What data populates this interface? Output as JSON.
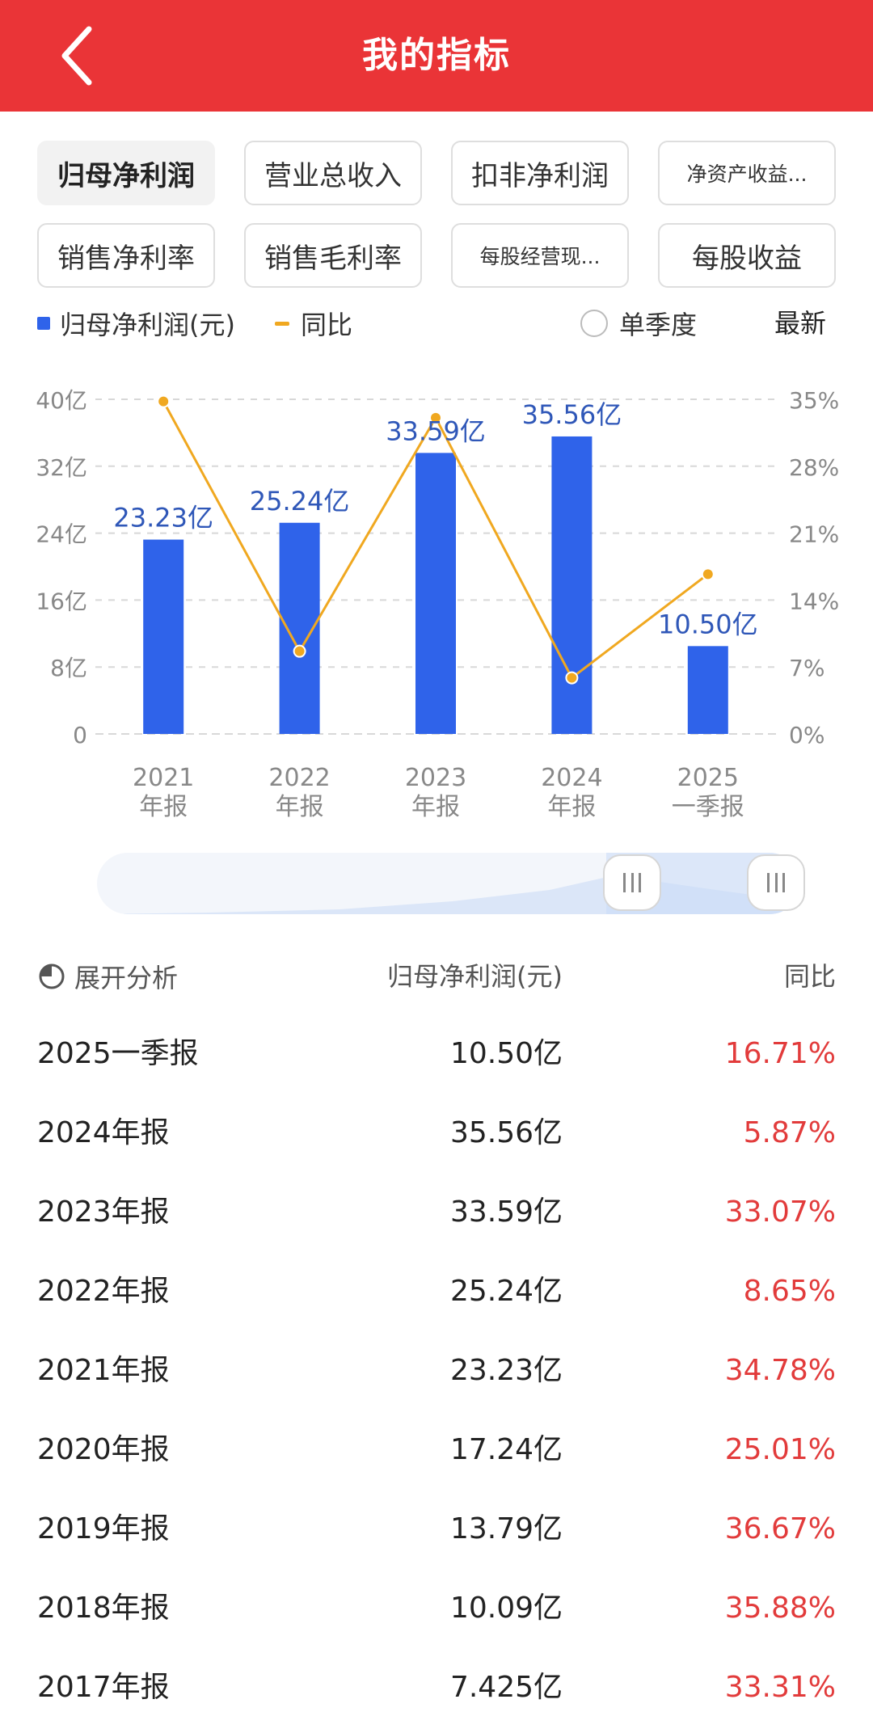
{
  "header": {
    "title": "我的指标",
    "back_icon": "chevron-left-icon"
  },
  "tabs": [
    {
      "label": "归母净利润",
      "active": true
    },
    {
      "label": "营业总收入",
      "active": false
    },
    {
      "label": "扣非净利润",
      "active": false
    },
    {
      "label": "净资产收益...",
      "active": false
    },
    {
      "label": "销售净利率",
      "active": false
    },
    {
      "label": "销售毛利率",
      "active": false
    },
    {
      "label": "每股经营现...",
      "active": false
    },
    {
      "label": "每股收益",
      "active": false
    }
  ],
  "legend": {
    "bar_label": "归母净利润(元)",
    "line_label": "同比",
    "single_quarter_label": "单季度",
    "latest_label": "最新"
  },
  "colors": {
    "accent": "#ea3437",
    "bar": "#2f63ea",
    "line": "#f0a820",
    "positive": "#e23b3b"
  },
  "chart_data": {
    "type": "bar",
    "categories": [
      {
        "year": "2021",
        "period": "年报"
      },
      {
        "year": "2022",
        "period": "年报"
      },
      {
        "year": "2023",
        "period": "年报"
      },
      {
        "year": "2024",
        "period": "年报"
      },
      {
        "year": "2025",
        "period": "一季报"
      }
    ],
    "series": [
      {
        "name": "归母净利润(元)",
        "values": [
          23.23,
          25.24,
          33.59,
          35.56,
          10.5
        ],
        "labels": [
          "23.23亿",
          "25.24亿",
          "33.59亿",
          "35.56亿",
          "10.50亿"
        ],
        "axis": "left"
      },
      {
        "name": "同比",
        "values": [
          34.78,
          8.65,
          33.07,
          5.87,
          16.71
        ],
        "axis": "right",
        "type": "line"
      }
    ],
    "y_left": {
      "ticks": [
        "0",
        "8亿",
        "16亿",
        "24亿",
        "32亿",
        "40亿"
      ],
      "range": [
        0,
        40
      ]
    },
    "y_right": {
      "ticks": [
        "0%",
        "7%",
        "14%",
        "21%",
        "28%",
        "35%"
      ],
      "range": [
        0,
        35
      ]
    },
    "grid": true
  },
  "table": {
    "header_analysis": "展开分析",
    "header_value": "归母净利润(元)",
    "header_yoy": "同比",
    "rows": [
      {
        "period": "2025一季报",
        "value": "10.50亿",
        "yoy": "16.71%"
      },
      {
        "period": "2024年报",
        "value": "35.56亿",
        "yoy": "5.87%"
      },
      {
        "period": "2023年报",
        "value": "33.59亿",
        "yoy": "33.07%"
      },
      {
        "period": "2022年报",
        "value": "25.24亿",
        "yoy": "8.65%"
      },
      {
        "period": "2021年报",
        "value": "23.23亿",
        "yoy": "34.78%"
      },
      {
        "period": "2020年报",
        "value": "17.24亿",
        "yoy": "25.01%"
      },
      {
        "period": "2019年报",
        "value": "13.79亿",
        "yoy": "36.67%"
      },
      {
        "period": "2018年报",
        "value": "10.09亿",
        "yoy": "35.88%"
      },
      {
        "period": "2017年报",
        "value": "7.425亿",
        "yoy": "33.31%"
      }
    ]
  }
}
